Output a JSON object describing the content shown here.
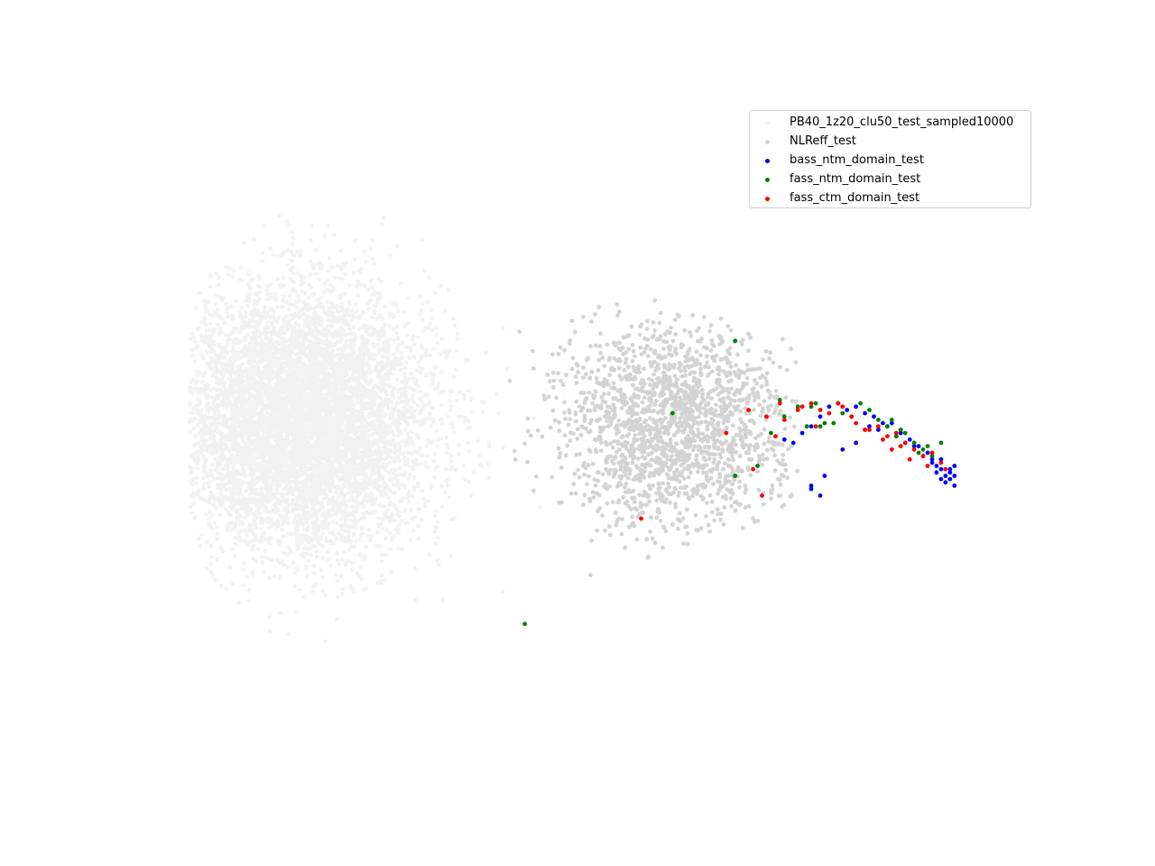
{
  "chart_data": {
    "type": "scatter",
    "title": "",
    "xlabel": "",
    "ylabel": "",
    "axes_visible": false,
    "grid": false,
    "legend_placement": "top-right",
    "xlim": [
      -10,
      10
    ],
    "ylim": [
      -10,
      10
    ],
    "series": [
      {
        "name": "PB40_1z20_clu50_test_sampled10000",
        "color": "#f2f2f2",
        "generated": true,
        "approx_count": 10000,
        "center": [
          -6.5,
          0.4
        ],
        "spread": [
          2.6,
          3.6
        ],
        "x_range": [
          -9.0,
          -0.5
        ],
        "y_range": [
          -7.8,
          6.8
        ]
      },
      {
        "name": "NLReff_test",
        "color": "#d3d3d3",
        "generated": true,
        "approx_count": 1800,
        "center": [
          1.8,
          0.2
        ],
        "spread": [
          2.4,
          2.8
        ],
        "x_range": [
          -2.0,
          4.6
        ],
        "y_range": [
          -5.4,
          5.6
        ]
      },
      {
        "name": "bass_ntm_domain_test",
        "color": "#0000ff",
        "x": [
          4.3,
          4.9,
          5.2,
          5.6,
          5.9,
          6.2,
          6.4,
          6.7,
          6.9,
          7.1,
          7.3,
          7.5,
          7.6,
          7.7,
          7.8,
          7.9,
          8.0,
          8.0,
          8.1,
          8.1,
          7.9,
          7.8,
          7.7,
          7.6,
          7.4,
          7.2,
          7.0,
          6.8,
          6.6,
          6.5,
          6.3,
          6.1,
          5.9,
          5.7,
          5.5,
          5.3,
          5.1,
          4.9,
          4.7,
          4.5,
          4.9,
          5.1,
          8.1,
          8.0,
          7.8
        ],
        "y": [
          -0.2,
          -1.7,
          -1.3,
          -0.5,
          -0.3,
          0.2,
          0.1,
          0.3,
          0.0,
          -0.2,
          -0.4,
          -0.6,
          -0.8,
          -1.0,
          -1.1,
          -1.3,
          -1.2,
          -1.4,
          -1.0,
          -1.3,
          -1.5,
          -1.4,
          -1.2,
          -0.9,
          -0.7,
          -0.4,
          -0.3,
          -0.1,
          0.2,
          0.3,
          0.5,
          0.6,
          0.8,
          0.7,
          0.9,
          0.8,
          0.5,
          0.2,
          0.0,
          -0.3,
          -1.6,
          -1.9,
          -1.6,
          -1.1,
          -0.8
        ]
      },
      {
        "name": "fass_ntm_domain_test",
        "color": "#008000",
        "x": [
          -1.5,
          1.8,
          3.2,
          4.0,
          4.3,
          4.6,
          4.9,
          5.2,
          5.5,
          5.8,
          6.1,
          6.4,
          6.6,
          6.8,
          7.0,
          7.2,
          7.4,
          7.6,
          7.8,
          5.0,
          5.6,
          6.2,
          6.9,
          7.5,
          4.8,
          5.4,
          6.0,
          6.7,
          7.3,
          4.2,
          5.1,
          3.7,
          3.2
        ],
        "y": [
          -5.8,
          0.6,
          2.8,
          0.0,
          0.5,
          0.8,
          0.8,
          0.3,
          0.9,
          0.5,
          0.1,
          0.4,
          0.2,
          -0.1,
          0.0,
          -0.3,
          -0.5,
          -0.7,
          -0.3,
          0.9,
          0.6,
          0.7,
          0.1,
          -0.4,
          0.2,
          0.3,
          0.9,
          0.4,
          -0.6,
          1.0,
          0.2,
          -1.0,
          -1.3
        ]
      },
      {
        "name": "fass_ctm_domain_test",
        "color": "#ff0000",
        "x": [
          3.8,
          3.0,
          3.5,
          4.2,
          4.6,
          4.9,
          5.3,
          5.6,
          5.9,
          6.1,
          6.4,
          6.6,
          6.8,
          7.0,
          7.2,
          7.4,
          7.6,
          7.8,
          7.9,
          6.9,
          6.5,
          6.2,
          5.8,
          5.5,
          5.1,
          4.7,
          4.3,
          3.9,
          4.1,
          6.7,
          7.1,
          7.5,
          5.0,
          1.1,
          3.6
        ],
        "y": [
          -1.9,
          0.0,
          0.7,
          0.9,
          0.7,
          0.9,
          0.6,
          0.8,
          0.3,
          0.1,
          0.2,
          -0.1,
          0.0,
          -0.3,
          -0.5,
          -0.7,
          -0.6,
          -0.9,
          -1.1,
          -0.4,
          -0.2,
          0.1,
          0.5,
          0.9,
          0.7,
          0.8,
          0.4,
          0.5,
          -0.1,
          -0.5,
          -0.8,
          -1.0,
          0.2,
          -2.6,
          -1.1
        ]
      }
    ]
  }
}
